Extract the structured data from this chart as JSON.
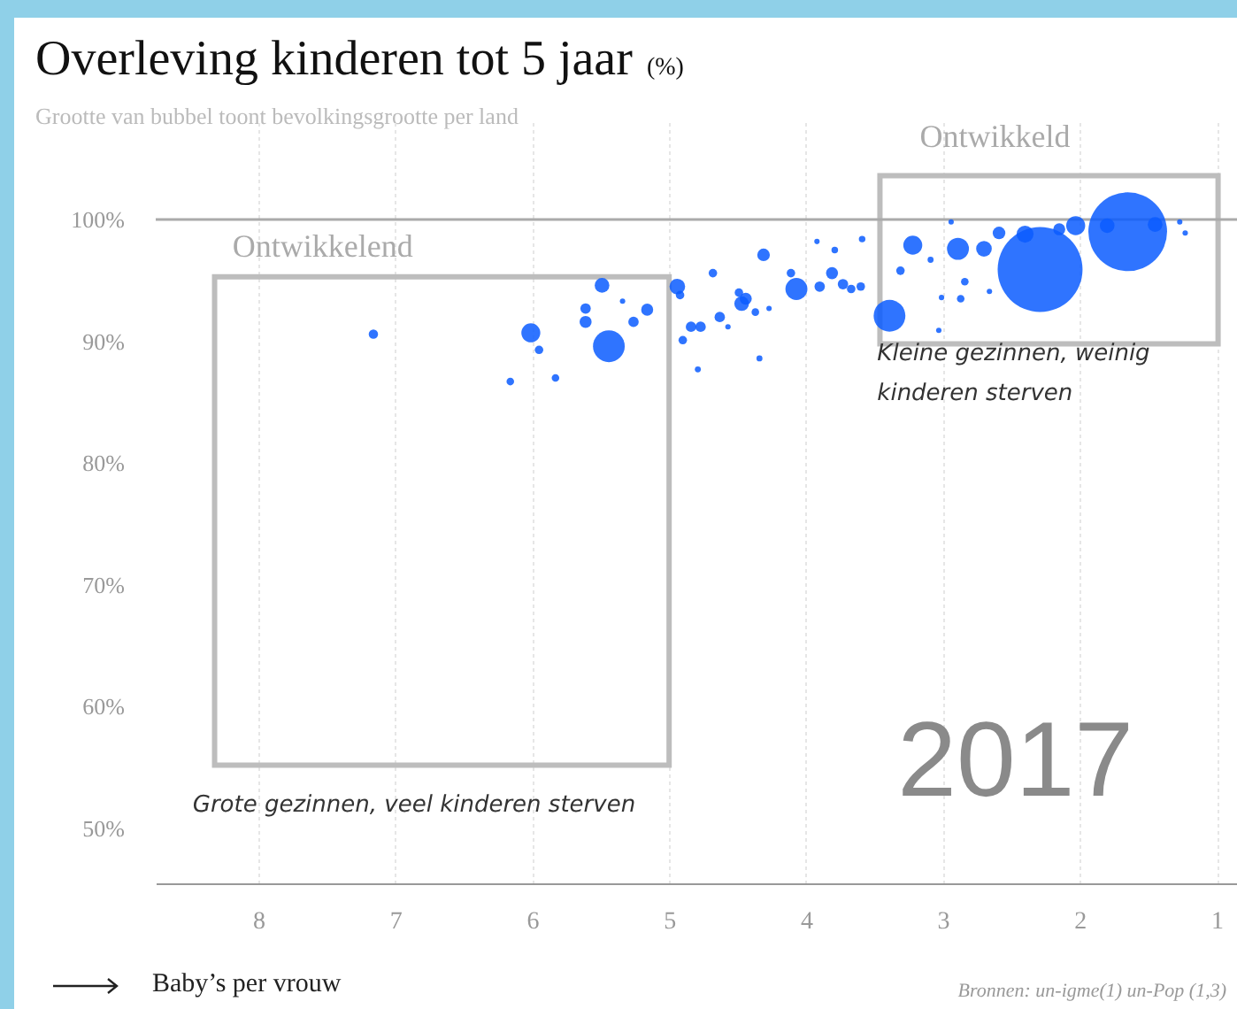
{
  "chart_data": {
    "type": "bubble",
    "title": "Overleving kinderen tot 5 jaar",
    "ylabel": "(%)",
    "subtitle": "Grootte van bubbel toont bevolkingsgrootte per land",
    "xlabel": "Baby’s per vrouw",
    "xlim": [
      8.75,
      0.8
    ],
    "xticks": [
      8,
      7,
      6,
      5,
      4,
      3,
      2,
      1
    ],
    "ylim": [
      45.5,
      108
    ],
    "yticks": [
      {
        "value": 50,
        "label": "50%"
      },
      {
        "value": 60,
        "label": "60%"
      },
      {
        "value": 70,
        "label": "70%"
      },
      {
        "value": 80,
        "label": "80%"
      },
      {
        "value": 90,
        "label": "90%"
      },
      {
        "value": 100,
        "label": "100%"
      }
    ],
    "grid": "x",
    "ref_lines": [
      {
        "axis": "y",
        "value": 100,
        "label": null,
        "color": "#aaaaaa"
      }
    ],
    "series": [
      {
        "color": "#0a5cff",
        "x": [
          2.29,
          1.65,
          7.16,
          6.16,
          6.01,
          5.95,
          5.83,
          5.61,
          5.61,
          5.49,
          5.44,
          5.34,
          5.26,
          5.16,
          4.94,
          4.92,
          4.9,
          4.84,
          4.77,
          4.79,
          4.68,
          4.63,
          4.57,
          4.49,
          4.47,
          4.44,
          4.37,
          4.34,
          4.31,
          4.27,
          4.11,
          4.07,
          3.92,
          3.9,
          3.81,
          3.79,
          3.73,
          3.67,
          3.6,
          3.59,
          3.39,
          3.31,
          3.22,
          3.09,
          3.03,
          3.01,
          2.94,
          2.89,
          2.87,
          2.84,
          2.7,
          2.66,
          2.59,
          2.03,
          2.4,
          1.8,
          1.45,
          1.27,
          1.23,
          2.15
        ],
        "values": [
          95.9,
          99.0,
          90.6,
          86.7,
          90.7,
          89.3,
          87.0,
          92.7,
          91.6,
          94.6,
          89.6,
          93.3,
          91.6,
          92.6,
          94.5,
          93.8,
          90.1,
          91.2,
          91.2,
          87.7,
          95.6,
          92.0,
          91.2,
          94.0,
          93.1,
          93.5,
          92.4,
          88.6,
          97.1,
          92.7,
          95.6,
          94.3,
          98.2,
          94.5,
          95.6,
          97.5,
          94.7,
          94.3,
          94.5,
          98.4,
          92.1,
          95.8,
          97.9,
          96.7,
          90.9,
          93.6,
          99.8,
          97.6,
          93.5,
          94.9,
          97.6,
          94.1,
          98.9,
          99.5,
          98.8,
          99.5,
          99.6,
          99.8,
          98.9,
          99.2
        ],
        "sizes": [
          1,
          0.86,
          0.012,
          0.008,
          0.05,
          0.01,
          0.008,
          0.015,
          0.02,
          0.03,
          0.14,
          0.004,
          0.015,
          0.02,
          0.034,
          0.01,
          0.01,
          0.015,
          0.015,
          0.005,
          0.01,
          0.015,
          0.004,
          0.01,
          0.03,
          0.02,
          0.008,
          0.005,
          0.022,
          0.004,
          0.01,
          0.067,
          0.004,
          0.015,
          0.02,
          0.006,
          0.015,
          0.01,
          0.01,
          0.006,
          0.14,
          0.01,
          0.05,
          0.005,
          0.004,
          0.004,
          0.004,
          0.067,
          0.008,
          0.008,
          0.034,
          0.004,
          0.022,
          0.05,
          0.04,
          0.03,
          0.03,
          0.004,
          0.004,
          0.02
        ]
      }
    ],
    "annotations": [
      "Ontwikkelend",
      "Ontwikkeld",
      "Grote gezinnen, veel kinderen sterven",
      "Kleine gezinnen, weinig\nkinderen sterven",
      "2017",
      "Bronnen: un-igme(1) un-Pop (1,3)"
    ]
  }
}
